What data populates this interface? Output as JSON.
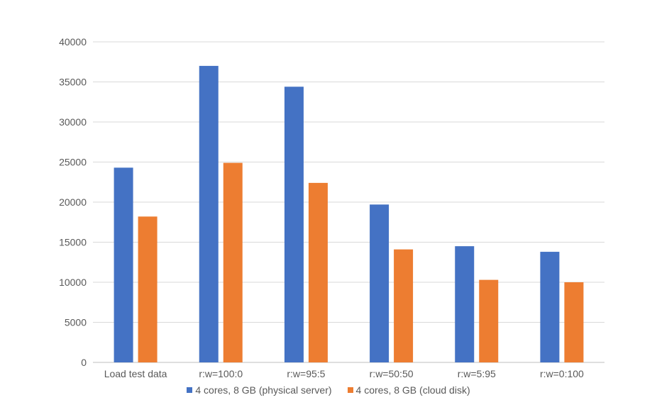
{
  "chart_data": {
    "type": "bar",
    "categories": [
      "Load test data",
      "r:w=100:0",
      "r:w=95:5",
      "r:w=50:50",
      "r:w=5:95",
      "r:w=0:100"
    ],
    "series": [
      {
        "name": "4 cores, 8 GB (physical server)",
        "color": "#4472C4",
        "values": [
          24300,
          37000,
          34400,
          19700,
          14500,
          13800
        ]
      },
      {
        "name": "4 cores, 8 GB (cloud disk)",
        "color": "#ED7D31",
        "values": [
          18200,
          24900,
          22400,
          14100,
          10300,
          10000
        ]
      }
    ],
    "yticks": [
      0,
      5000,
      10000,
      15000,
      20000,
      25000,
      30000,
      35000,
      40000
    ],
    "ylim": [
      0,
      40000
    ],
    "grid": true,
    "legend_position": "bottom"
  }
}
